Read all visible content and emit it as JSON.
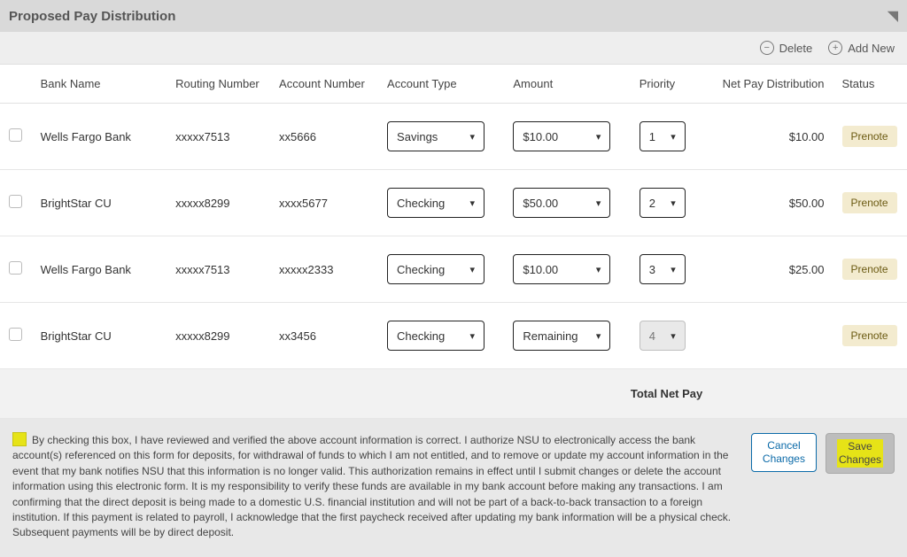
{
  "panel": {
    "title": "Proposed Pay Distribution"
  },
  "toolbar": {
    "delete": "Delete",
    "addNew": "Add New"
  },
  "columns": {
    "bank": "Bank Name",
    "routing": "Routing Number",
    "account": "Account Number",
    "type": "Account Type",
    "amount": "Amount",
    "priority": "Priority",
    "net": "Net Pay Distribution",
    "status": "Status"
  },
  "rows": [
    {
      "bank": "Wells Fargo Bank",
      "routing": "xxxxx7513",
      "account": "xx5666",
      "type": "Savings",
      "amount": "$10.00",
      "priority": "1",
      "priorityDisabled": false,
      "net": "$10.00",
      "status": "Prenote"
    },
    {
      "bank": "BrightStar CU",
      "routing": "xxxxx8299",
      "account": "xxxx5677",
      "type": "Checking",
      "amount": "$50.00",
      "priority": "2",
      "priorityDisabled": false,
      "net": "$50.00",
      "status": "Prenote"
    },
    {
      "bank": "Wells Fargo Bank",
      "routing": "xxxxx7513",
      "account": "xxxxx2333",
      "type": "Checking",
      "amount": "$10.00",
      "priority": "3",
      "priorityDisabled": false,
      "net": "$25.00",
      "status": "Prenote"
    },
    {
      "bank": "BrightStar CU",
      "routing": "xxxxx8299",
      "account": "xx3456",
      "type": "Checking",
      "amount": "Remaining",
      "priority": "4",
      "priorityDisabled": true,
      "net": "",
      "status": "Prenote"
    }
  ],
  "totals": {
    "label": "Total Net Pay",
    "value": ""
  },
  "disclaimer": "By checking this box, I have reviewed and verified the above account information is correct. I authorize NSU to electronically access the bank account(s) referenced on this form for deposits, for withdrawal of funds to which I am not entitled, and to remove or update my account information in the event that my bank notifies NSU that this information is no longer valid. This authorization remains in effect until I submit changes or delete the account information using this electronic form. It is my responsibility to verify these funds are available in my bank account before making any transactions. I am confirming that the direct deposit is being made to a domestic U.S. financial institution and will not be part of a back-to-back transaction to a foreign institution. If this payment is related to payroll, I acknowledge that the first paycheck received after updating my bank information will be a physical check. Subsequent payments will be by direct deposit.",
  "buttons": {
    "cancel1": "Cancel",
    "cancel2": "Changes",
    "save1": "Save",
    "save2": "Changes"
  },
  "colors": {
    "header_bg": "#d9d9d9",
    "toolbar_bg": "#eeeeee",
    "row_border": "#e6e6e6",
    "badge_bg": "#f3ebcf",
    "badge_fg": "#6b5a12",
    "highlight": "#e6e317",
    "disabled_bg": "#e9e9e9",
    "link_blue": "#0b6aa8"
  }
}
